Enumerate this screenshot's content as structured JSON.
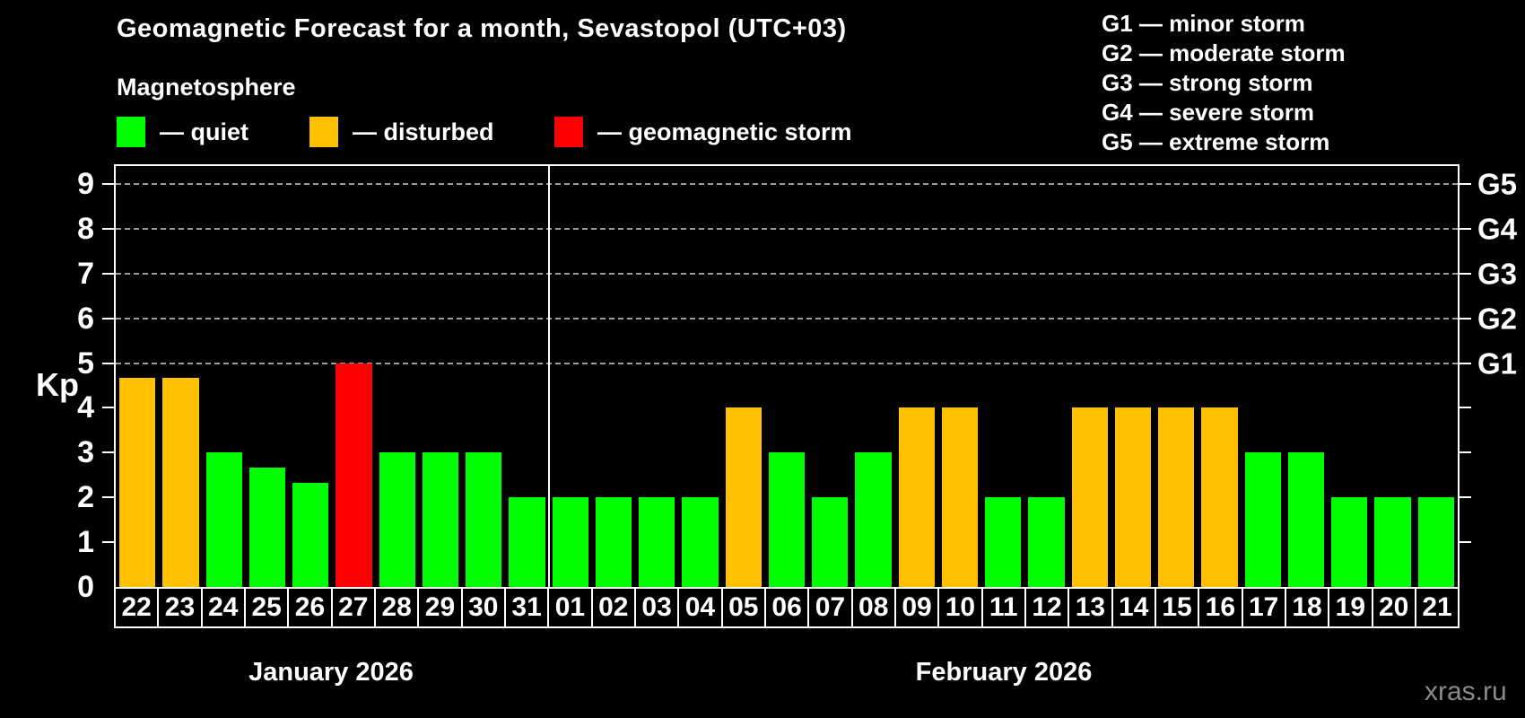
{
  "title": "Geomagnetic Forecast for a month, Sevastopol (UTC+03)",
  "subtitle": "Magnetosphere",
  "legend": {
    "items": [
      {
        "key": "quiet",
        "label": "— quiet",
        "color": "#00ff00"
      },
      {
        "key": "disturbed",
        "label": "— disturbed",
        "color": "#ffc000"
      },
      {
        "key": "storm",
        "label": "— geomagnetic storm",
        "color": "#ff0000"
      }
    ]
  },
  "storm_scale_legend": [
    "G1 — minor storm",
    "G2 — moderate storm",
    "G3 — strong storm",
    "G4 — severe storm",
    "G5 — extreme storm"
  ],
  "watermark": "xras.ru",
  "chart_data": {
    "type": "bar",
    "title": "Geomagnetic Forecast for a month, Sevastopol (UTC+03)",
    "ylabel": "Kp",
    "ylim": [
      0,
      9.4
    ],
    "yticks": [
      0,
      1,
      2,
      3,
      4,
      5,
      6,
      7,
      8,
      9
    ],
    "gridlines_at": [
      5,
      6,
      7,
      8,
      9
    ],
    "grid": "dashed horizontal at G-storm levels only",
    "right_axis": [
      {
        "label": "G1",
        "kp": 5
      },
      {
        "label": "G2",
        "kp": 6
      },
      {
        "label": "G3",
        "kp": 7
      },
      {
        "label": "G4",
        "kp": 8
      },
      {
        "label": "G5",
        "kp": 9
      }
    ],
    "months": [
      {
        "label": "January 2026",
        "days": 10
      },
      {
        "label": "February 2026",
        "days": 21
      }
    ],
    "categories": [
      "22",
      "23",
      "24",
      "25",
      "26",
      "27",
      "28",
      "29",
      "30",
      "31",
      "01",
      "02",
      "03",
      "04",
      "05",
      "06",
      "07",
      "08",
      "09",
      "10",
      "11",
      "12",
      "13",
      "14",
      "15",
      "16",
      "17",
      "18",
      "19",
      "20",
      "21"
    ],
    "values": [
      4.67,
      4.67,
      3,
      2.67,
      2.33,
      5,
      3,
      3,
      3,
      2,
      2,
      2,
      2,
      2,
      4,
      3,
      2,
      3,
      4,
      4,
      2,
      2,
      4,
      4,
      4,
      4,
      3,
      3,
      2,
      2,
      2
    ],
    "statuses": [
      "disturbed",
      "disturbed",
      "quiet",
      "quiet",
      "quiet",
      "storm",
      "quiet",
      "quiet",
      "quiet",
      "quiet",
      "quiet",
      "quiet",
      "quiet",
      "quiet",
      "disturbed",
      "quiet",
      "quiet",
      "quiet",
      "disturbed",
      "disturbed",
      "quiet",
      "quiet",
      "disturbed",
      "disturbed",
      "disturbed",
      "disturbed",
      "quiet",
      "quiet",
      "quiet",
      "quiet",
      "quiet"
    ]
  }
}
